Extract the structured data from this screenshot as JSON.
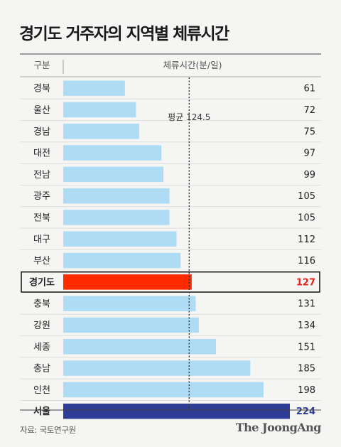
{
  "title": "경기도 거주자의 지역별 체류시간",
  "source": "자료: 국토연구원",
  "brand": "The JoongAng",
  "colors": {
    "bar_default": "#aedcf5",
    "highlight": "#ff2a00",
    "highlight_text": "#e8201a",
    "seoul": "#2e3d96",
    "mean_line": "#333333"
  },
  "chart_data": {
    "type": "bar",
    "orientation": "horizontal",
    "category_header": "구분",
    "value_header": "체류시간(분/일)",
    "categories": [
      "경북",
      "울산",
      "경남",
      "대전",
      "전남",
      "광주",
      "전북",
      "대구",
      "부산",
      "경기도",
      "충북",
      "강원",
      "세종",
      "충남",
      "인천",
      "서울"
    ],
    "values": [
      61,
      72,
      75,
      97,
      99,
      105,
      105,
      112,
      116,
      127,
      131,
      134,
      151,
      185,
      198,
      224
    ],
    "mean": {
      "label": "평균 124.5",
      "value": 124.5
    },
    "highlight": "경기도",
    "emphasis": "서울",
    "xlim": [
      0,
      224
    ],
    "grid": false
  }
}
